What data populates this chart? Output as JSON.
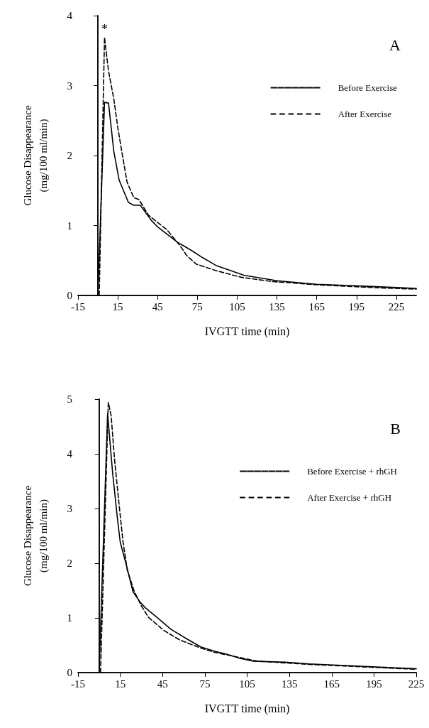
{
  "chart_data": [
    {
      "type": "line",
      "xlabel": "IVGTT time (min)",
      "ylabel": "Glucose Disappearance\n(mg/100 ml/min)",
      "xlim": [
        -15,
        240
      ],
      "xticks": [
        -15,
        15,
        45,
        75,
        105,
        135,
        165,
        195,
        225
      ],
      "ylim": [
        0,
        4
      ],
      "yticks": [
        0,
        1,
        2,
        3,
        4
      ],
      "grid": false,
      "legend": "top right",
      "marker": "none",
      "annotations": [
        "A",
        "*"
      ],
      "series": [
        {
          "name": "Before Exercise",
          "color": "#000000",
          "line_style": "solid",
          "x": [
            0,
            5,
            8,
            12,
            16,
            23,
            27,
            32,
            40,
            45,
            60,
            70,
            79,
            89,
            110,
            135,
            165,
            193,
            240
          ],
          "values": [
            0,
            2.76,
            2.75,
            2.06,
            1.65,
            1.33,
            1.29,
            1.29,
            1.08,
            0.98,
            0.76,
            0.65,
            0.54,
            0.43,
            0.29,
            0.21,
            0.16,
            0.14,
            0.1
          ]
        },
        {
          "name": "After Exercise",
          "color": "#000000",
          "line_style": "dashed",
          "x": [
            1,
            5,
            6,
            8,
            12,
            15,
            18,
            22,
            27,
            31,
            38,
            52,
            62,
            67,
            74,
            90,
            108,
            131,
            167,
            211,
            240
          ],
          "values": [
            0,
            3.69,
            3.52,
            3.21,
            2.81,
            2.4,
            2.06,
            1.62,
            1.4,
            1.37,
            1.15,
            0.94,
            0.71,
            0.57,
            0.45,
            0.35,
            0.26,
            0.2,
            0.15,
            0.11,
            0.09
          ]
        }
      ]
    },
    {
      "type": "line",
      "xlabel": "IVGTT time (min)",
      "ylabel": "Glucose Disappearance\n(mg/100 ml/min)",
      "xlim": [
        -15,
        225
      ],
      "xticks": [
        -15,
        15,
        45,
        75,
        105,
        135,
        165,
        195,
        225
      ],
      "ylim": [
        0,
        5
      ],
      "yticks": [
        0,
        1,
        2,
        3,
        4,
        5
      ],
      "grid": false,
      "legend": "top right",
      "marker": "none",
      "annotations": [
        "B"
      ],
      "series": [
        {
          "name": "Before Exercise + rhGH",
          "color": "#000000",
          "line_style": "solid",
          "x": [
            0,
            6,
            9.5,
            13,
            15,
            19,
            24,
            29,
            33,
            41,
            51,
            62,
            72,
            82,
            90,
            100,
            109,
            132,
            149,
            183,
            225
          ],
          "values": [
            0,
            4.74,
            3.67,
            2.81,
            2.38,
            2.0,
            1.48,
            1.29,
            1.18,
            1.01,
            0.79,
            0.62,
            0.47,
            0.39,
            0.34,
            0.26,
            0.21,
            0.19,
            0.16,
            0.12,
            0.07
          ]
        },
        {
          "name": "After Exercise + rhGH",
          "color": "#000000",
          "line_style": "dashed",
          "x": [
            1,
            6.5,
            8.5,
            11,
            14,
            17,
            20,
            25,
            30,
            35,
            46,
            57,
            72,
            82,
            99,
            112,
            149,
            183,
            225
          ],
          "values": [
            0,
            4.94,
            4.7,
            3.88,
            3.11,
            2.38,
            1.87,
            1.48,
            1.22,
            1.01,
            0.77,
            0.6,
            0.45,
            0.37,
            0.28,
            0.21,
            0.15,
            0.11,
            0.06
          ]
        }
      ]
    }
  ]
}
